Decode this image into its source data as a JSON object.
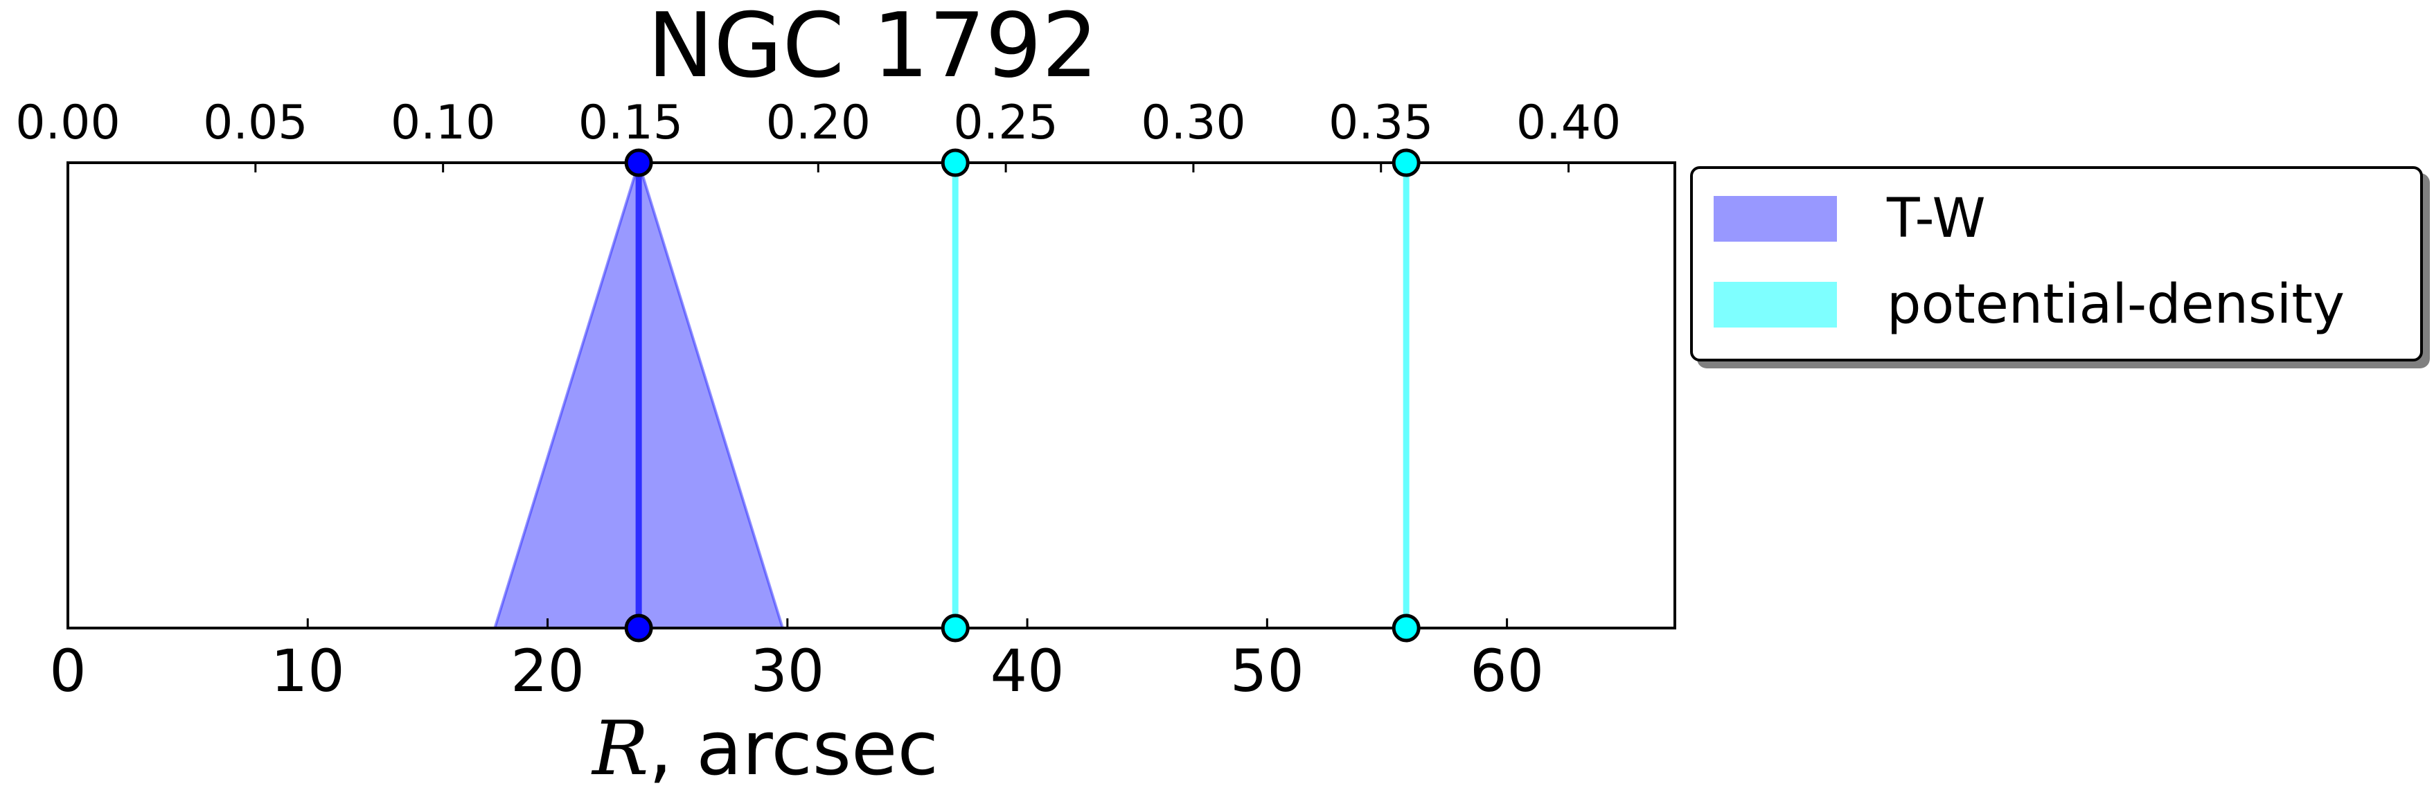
{
  "chart_data": {
    "type": "line",
    "title": "NGC 1792",
    "xlabel": "R, arcsec",
    "xlim": [
      0,
      67
    ],
    "x_ticks": [
      0,
      10,
      20,
      30,
      40,
      50,
      60
    ],
    "x_tick_labels": [
      "0",
      "10",
      "20",
      "30",
      "40",
      "50",
      "60"
    ],
    "x2_ticks": [
      0.0,
      0.05,
      0.1,
      0.15,
      0.2,
      0.25,
      0.3,
      0.35,
      0.4
    ],
    "x2_tick_labels": [
      "0.00",
      "0.05",
      "0.10",
      "0.15",
      "0.20",
      "0.25",
      "0.30",
      "0.35",
      "0.40"
    ],
    "x2_scale": 0.006393,
    "y_ticks": "none",
    "grid": false,
    "legend_position": "outside-right",
    "series": [
      {
        "name": "T-W",
        "color": "#0000ff",
        "fill_color": "#3333ff",
        "markers": [
          23.8
        ],
        "uncertainty": {
          "low": 17.8,
          "high": 29.8
        }
      },
      {
        "name": "potential-density",
        "color": "#00ffff",
        "fill_color": "#00ffff",
        "markers": [
          37.0,
          55.8
        ]
      }
    ]
  }
}
